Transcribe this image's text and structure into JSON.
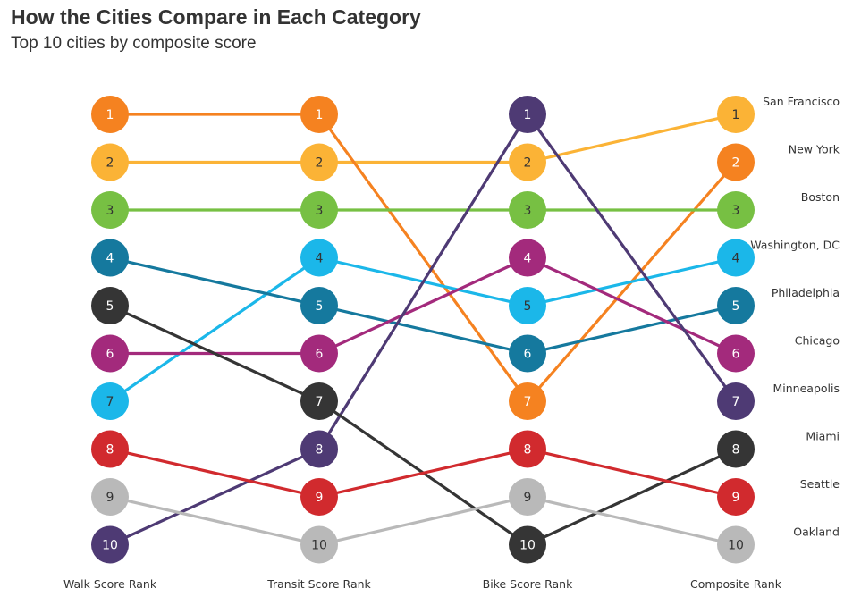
{
  "header": {
    "title": "How the Cities Compare in Each Category",
    "subtitle": "Top 10 cities by composite score"
  },
  "chart_data": {
    "type": "bump",
    "categories": [
      "Walk Score Rank",
      "Transit Score Rank",
      "Bike Score Rank",
      "Composite Rank"
    ],
    "y_scale": "rank (1 at top, 10 at bottom)",
    "ylim": [
      1,
      10
    ],
    "grid": false,
    "legend": "city names at right of Composite Rank column",
    "series": [
      {
        "name": "San Francisco",
        "color": "#fbb336",
        "ranks": [
          2,
          2,
          2,
          1
        ]
      },
      {
        "name": "New York",
        "color": "#f58220",
        "ranks": [
          1,
          1,
          7,
          2
        ]
      },
      {
        "name": "Boston",
        "color": "#77c043",
        "ranks": [
          3,
          3,
          3,
          3
        ]
      },
      {
        "name": "Washington, DC",
        "color": "#1bb7e9",
        "ranks": [
          7,
          4,
          5,
          4
        ]
      },
      {
        "name": "Philadelphia",
        "color": "#15799e",
        "ranks": [
          4,
          5,
          6,
          5
        ]
      },
      {
        "name": "Chicago",
        "color": "#a32a7c",
        "ranks": [
          6,
          6,
          4,
          6
        ]
      },
      {
        "name": "Minneapolis",
        "color": "#4e3a74",
        "ranks": [
          10,
          8,
          1,
          7
        ]
      },
      {
        "name": "Miami",
        "color": "#353535",
        "ranks": [
          5,
          7,
          10,
          8
        ]
      },
      {
        "name": "Seattle",
        "color": "#d12a2e",
        "ranks": [
          8,
          9,
          8,
          9
        ]
      },
      {
        "name": "Oakland",
        "color": "#b9b9b9",
        "ranks": [
          9,
          10,
          9,
          10
        ]
      }
    ]
  }
}
